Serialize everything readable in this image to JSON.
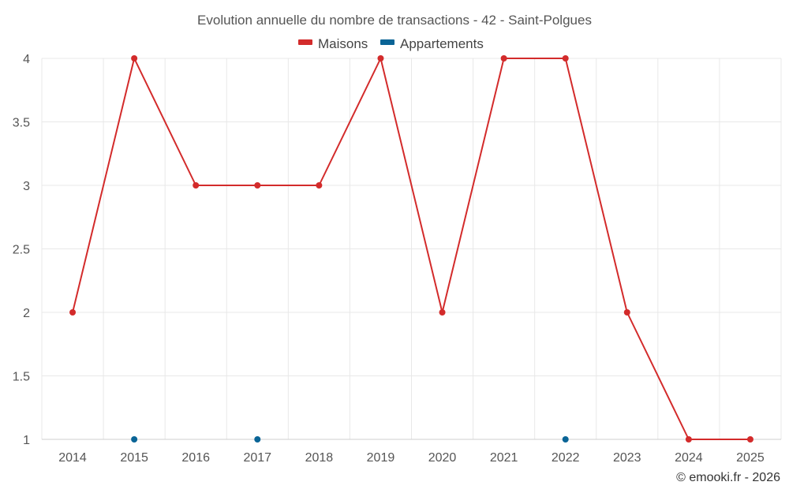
{
  "chart_data": {
    "type": "line",
    "title": "Evolution annuelle du nombre de transactions - 42 - Saint-Polgues",
    "categories": [
      "2014",
      "2015",
      "2016",
      "2017",
      "2018",
      "2019",
      "2020",
      "2021",
      "2022",
      "2023",
      "2024",
      "2025"
    ],
    "yticks": [
      "1",
      "1.5",
      "2",
      "2.5",
      "3",
      "3.5",
      "4"
    ],
    "ylim": [
      1,
      4
    ],
    "grid": true,
    "legend_position": "top-center",
    "series": [
      {
        "name": "Maisons",
        "color": "#d32b2b",
        "values": [
          2,
          4,
          3,
          3,
          3,
          4,
          2,
          4,
          4,
          2,
          1,
          1
        ]
      },
      {
        "name": "Appartements",
        "color": "#0a6496",
        "values": [
          null,
          1,
          null,
          1,
          null,
          null,
          null,
          null,
          1,
          null,
          null,
          null
        ]
      }
    ],
    "credit": "© emooki.fr - 2026"
  }
}
